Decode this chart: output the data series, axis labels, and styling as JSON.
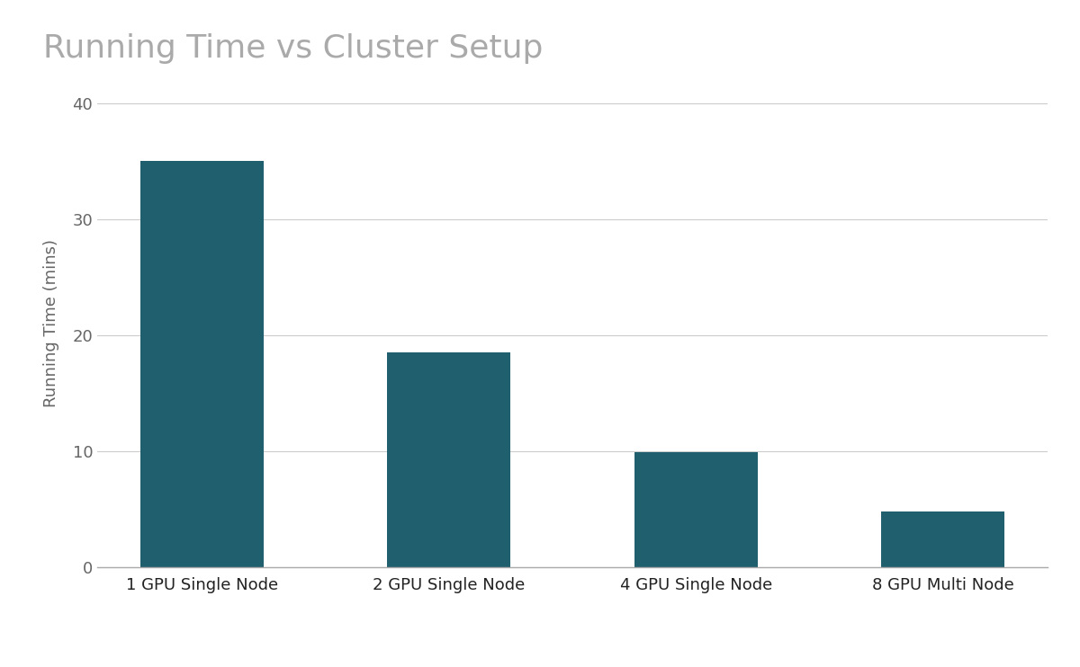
{
  "title": "Running Time vs Cluster Setup",
  "categories": [
    "1 GPU Single Node",
    "2 GPU Single Node",
    "4 GPU Single Node",
    "8 GPU Multi Node"
  ],
  "values": [
    35,
    18.5,
    9.9,
    4.8
  ],
  "bar_color": "#1f5f6e",
  "ylabel": "Running Time (mins)",
  "ylim": [
    0,
    42
  ],
  "yticks": [
    0,
    10,
    20,
    30,
    40
  ],
  "background_color": "#ffffff",
  "title_fontsize": 26,
  "title_color": "#aaaaaa",
  "ylabel_fontsize": 13,
  "ylabel_color": "#666666",
  "ytick_fontsize": 13,
  "ytick_color": "#666666",
  "xtick_fontsize": 13,
  "xtick_color": "#222222",
  "grid_color": "#cccccc",
  "bar_width": 0.5,
  "spine_color": "#aaaaaa"
}
